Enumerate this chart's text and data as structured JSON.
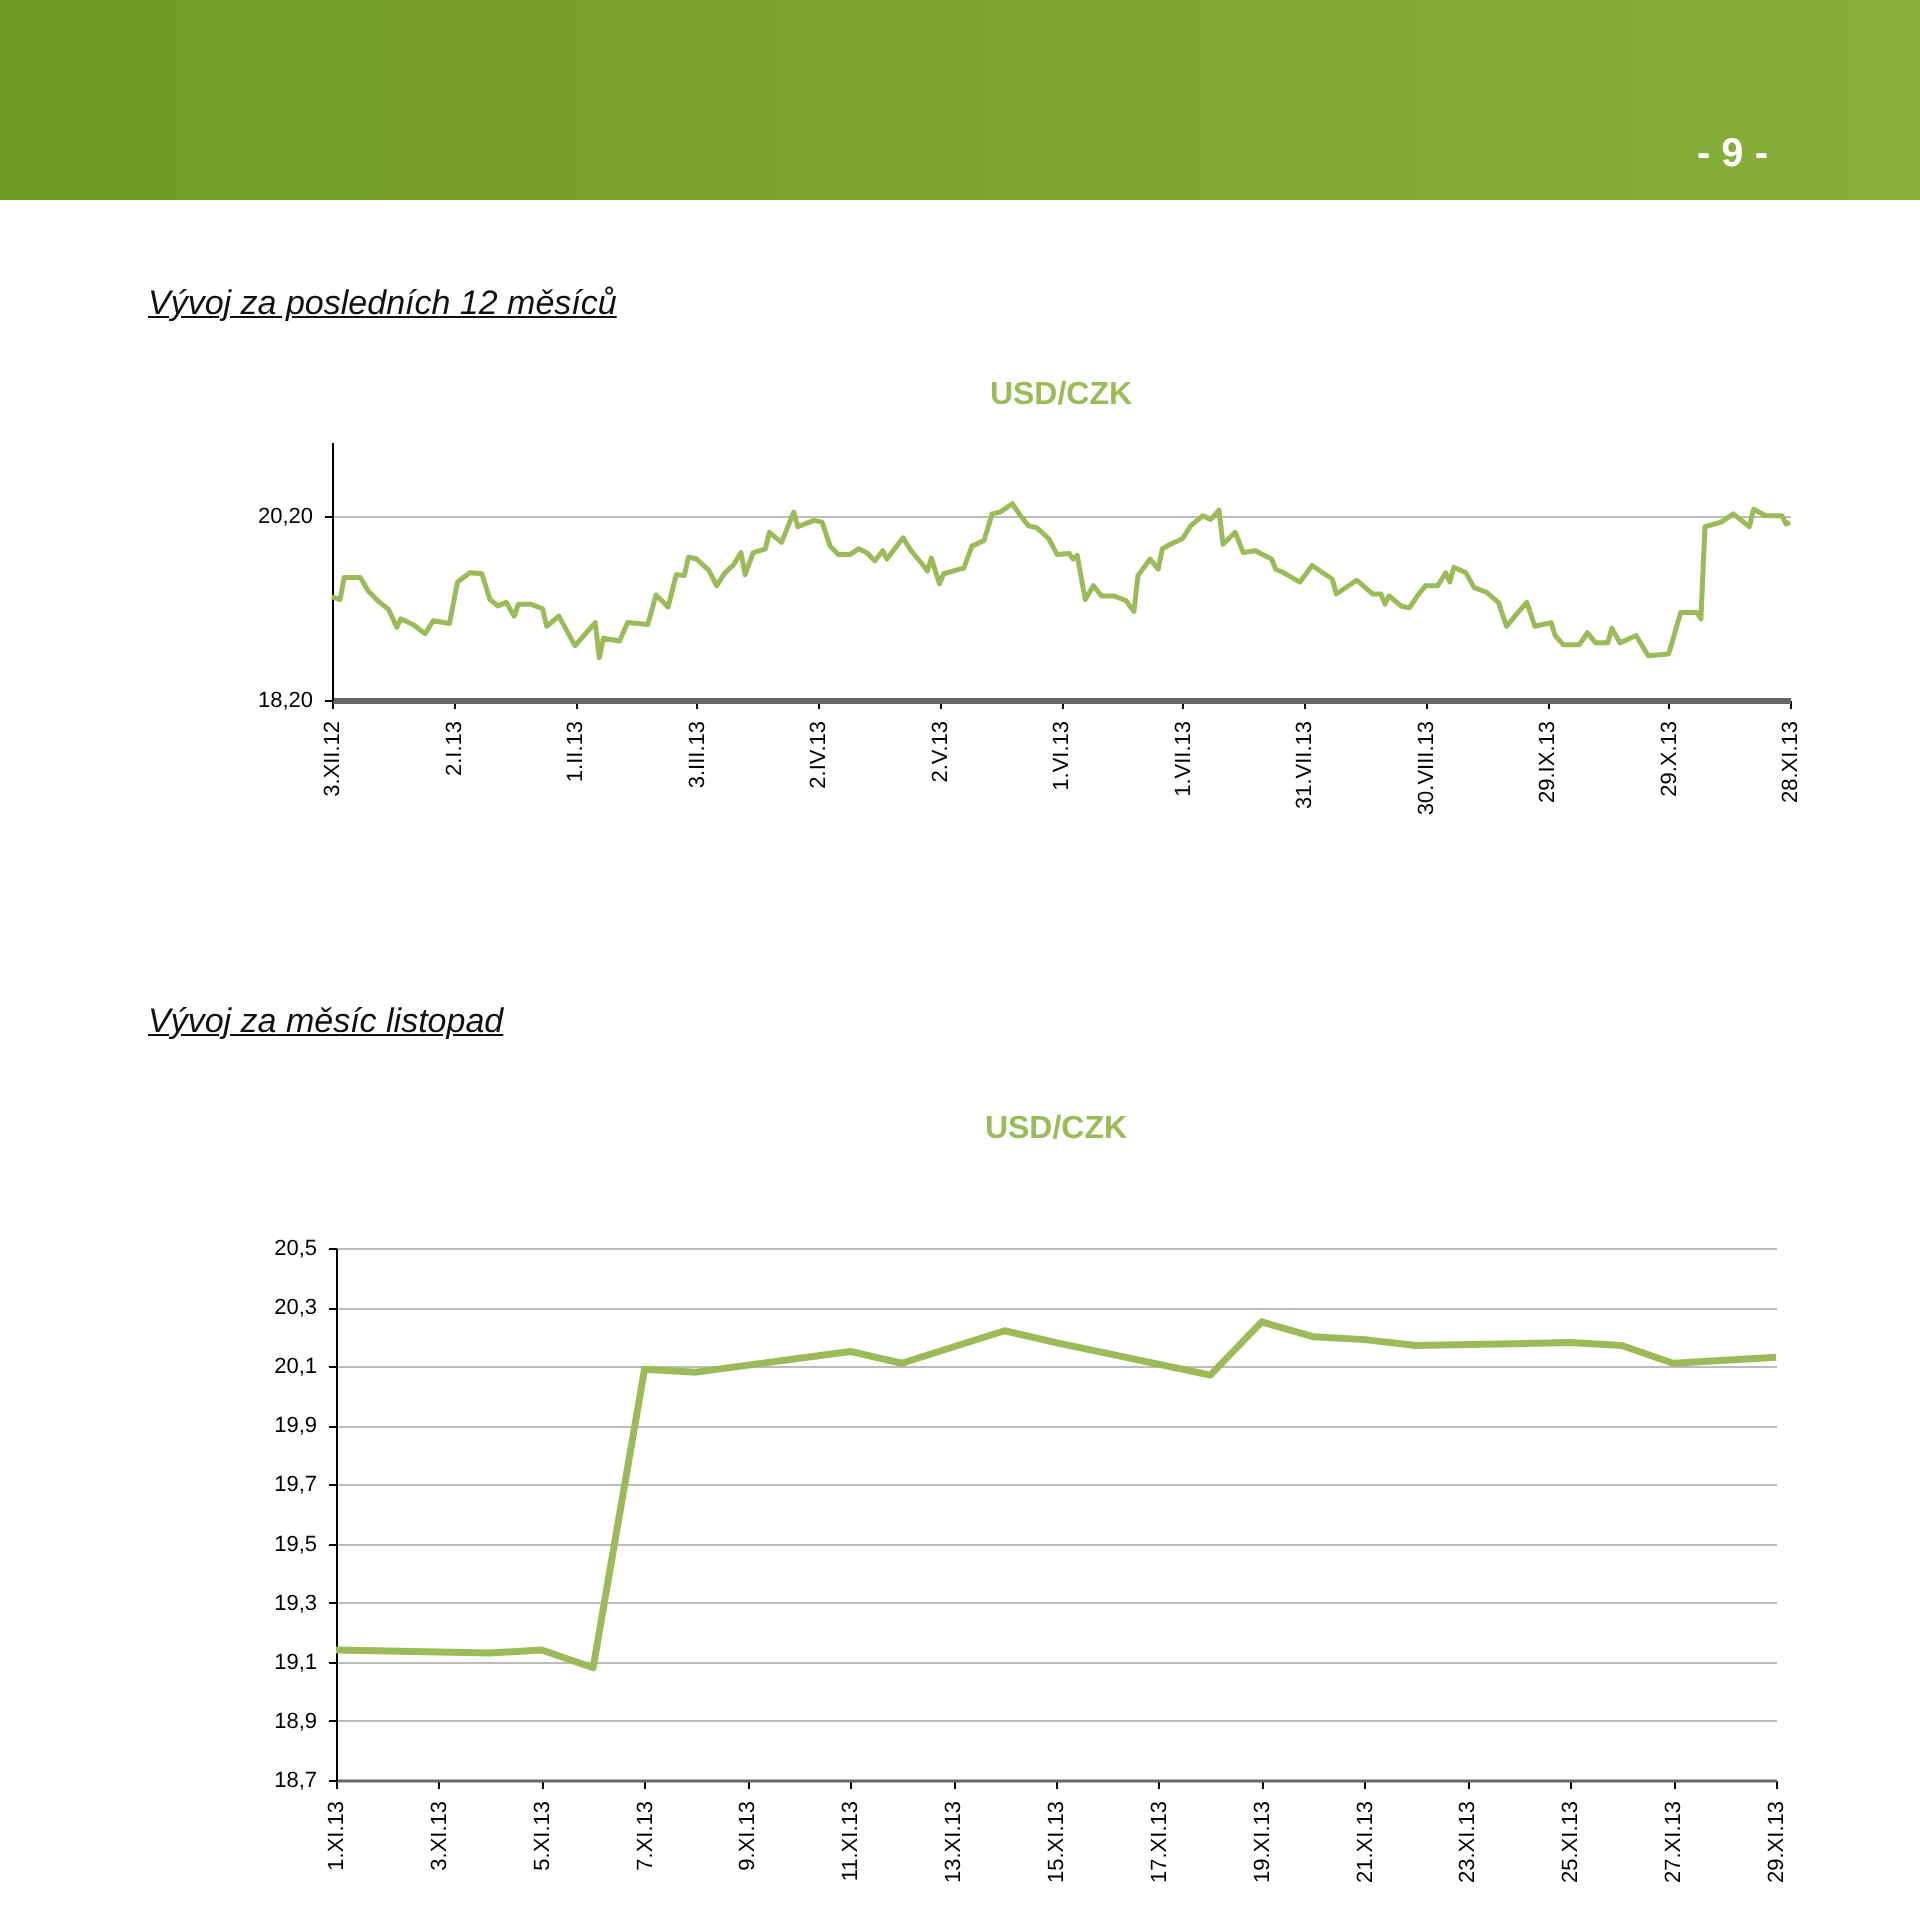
{
  "chart_data": [
    {
      "type": "line",
      "title": "Vývoj za posledních 12 měsíců",
      "subtitle": "USD/CZK",
      "annotations": [
        "- 9 -"
      ],
      "grid": "y",
      "xlim": [
        "2012-12-03",
        "2013-11-28"
      ],
      "ylim": [
        18.2,
        21.0
      ],
      "yticks": [
        {
          "value": 18.2,
          "label": "18,20"
        },
        {
          "value": 20.2,
          "label": "20,20"
        }
      ],
      "xticks": [
        {
          "value": "2012-12-03",
          "label": "3.XII.12"
        },
        {
          "value": "2013-01-02",
          "label": "2.I.13"
        },
        {
          "value": "2013-02-01",
          "label": "1.II.13"
        },
        {
          "value": "2013-03-03",
          "label": "3.III.13"
        },
        {
          "value": "2013-04-02",
          "label": "2.IV.13"
        },
        {
          "value": "2013-05-02",
          "label": "2.V.13"
        },
        {
          "value": "2013-06-01",
          "label": "1.VI.13"
        },
        {
          "value": "2013-07-01",
          "label": "1.VII.13"
        },
        {
          "value": "2013-07-31",
          "label": "31.VII.13"
        },
        {
          "value": "2013-08-30",
          "label": "30.VIII.13"
        },
        {
          "value": "2013-09-29",
          "label": "29.IX.13"
        },
        {
          "value": "2013-10-29",
          "label": "29.X.13"
        },
        {
          "value": "2013-11-28",
          "label": "28.XI.13"
        }
      ],
      "series": [
        {
          "color": "#9bbb59",
          "x": [
            "2012-12-03",
            "2012-12-05",
            "2012-12-06",
            "2012-12-10",
            "2012-12-12",
            "2012-12-14",
            "2012-12-17",
            "2012-12-19",
            "2012-12-20",
            "2012-12-23",
            "2012-12-26",
            "2012-12-28",
            "2013-01-01",
            "2013-01-03",
            "2013-01-06",
            "2013-01-09",
            "2013-01-11",
            "2013-01-13",
            "2013-01-15",
            "2013-01-17",
            "2013-01-18",
            "2013-01-21",
            "2013-01-24",
            "2013-01-25",
            "2013-01-28",
            "2013-02-01",
            "2013-02-06",
            "2013-02-07",
            "2013-02-08",
            "2013-02-12",
            "2013-02-14",
            "2013-02-19",
            "2013-02-21",
            "2013-02-24",
            "2013-02-26",
            "2013-02-28",
            "2013-03-01",
            "2013-03-03",
            "2013-03-06",
            "2013-03-08",
            "2013-03-10",
            "2013-03-12",
            "2013-03-14",
            "2013-03-15",
            "2013-03-17",
            "2013-03-20",
            "2013-03-21",
            "2013-03-24",
            "2013-03-27",
            "2013-03-28",
            "2013-04-01",
            "2013-04-03",
            "2013-04-05",
            "2013-04-07",
            "2013-04-10",
            "2013-04-12",
            "2013-04-14",
            "2013-04-16",
            "2013-04-18",
            "2013-04-19",
            "2013-04-23",
            "2013-04-25",
            "2013-04-28",
            "2013-04-29",
            "2013-04-30",
            "2013-05-02",
            "2013-05-03",
            "2013-05-07",
            "2013-05-08",
            "2013-05-10",
            "2013-05-13",
            "2013-05-15",
            "2013-05-17",
            "2013-05-20",
            "2013-05-22",
            "2013-05-24",
            "2013-05-26",
            "2013-05-29",
            "2013-05-31",
            "2013-06-03",
            "2013-06-04",
            "2013-06-05",
            "2013-06-07",
            "2013-06-09",
            "2013-06-11",
            "2013-06-14",
            "2013-06-17",
            "2013-06-19",
            "2013-06-20",
            "2013-06-23",
            "2013-06-25",
            "2013-06-26",
            "2013-06-28",
            "2013-07-01",
            "2013-07-03",
            "2013-07-06",
            "2013-07-08",
            "2013-07-10",
            "2013-07-11",
            "2013-07-14",
            "2013-07-16",
            "2013-07-19",
            "2013-07-23",
            "2013-07-24",
            "2013-07-26",
            "2013-07-30",
            "2013-08-02",
            "2013-08-07",
            "2013-08-08",
            "2013-08-13",
            "2013-08-17",
            "2013-08-19",
            "2013-08-20",
            "2013-08-21",
            "2013-08-24",
            "2013-08-26",
            "2013-08-28",
            "2013-08-30",
            "2013-09-02",
            "2013-09-04",
            "2013-09-05",
            "2013-09-06",
            "2013-09-09",
            "2013-09-11",
            "2013-09-14",
            "2013-09-17",
            "2013-09-19",
            "2013-09-22",
            "2013-09-24",
            "2013-09-26",
            "2013-09-30",
            "2013-10-01",
            "2013-10-03",
            "2013-10-07",
            "2013-10-09",
            "2013-10-11",
            "2013-10-14",
            "2013-10-15",
            "2013-10-17",
            "2013-10-21",
            "2013-10-24",
            "2013-10-29",
            "2013-10-30",
            "2013-11-01",
            "2013-11-05",
            "2013-11-06",
            "2013-11-07",
            "2013-11-11",
            "2013-11-12",
            "2013-11-14",
            "2013-11-18",
            "2013-11-19",
            "2013-11-22",
            "2013-11-26",
            "2013-11-27",
            "2013-11-28"
          ],
          "values": [
            19.32,
            19.29,
            19.53,
            19.53,
            19.38,
            19.29,
            19.18,
            18.99,
            19.08,
            19.02,
            18.92,
            19.06,
            19.03,
            19.48,
            19.58,
            19.57,
            19.29,
            19.22,
            19.26,
            19.11,
            19.24,
            19.24,
            19.19,
            19.0,
            19.11,
            18.79,
            19.04,
            18.66,
            18.87,
            18.84,
            19.04,
            19.02,
            19.34,
            19.21,
            19.56,
            19.55,
            19.75,
            19.73,
            19.61,
            19.44,
            19.58,
            19.66,
            19.8,
            19.56,
            19.8,
            19.84,
            20.02,
            19.91,
            20.24,
            20.08,
            20.15,
            20.13,
            19.87,
            19.78,
            19.78,
            19.84,
            19.8,
            19.71,
            19.82,
            19.73,
            19.96,
            19.82,
            19.66,
            19.6,
            19.74,
            19.46,
            19.57,
            19.62,
            19.63,
            19.87,
            19.93,
            20.22,
            20.24,
            20.33,
            20.2,
            20.09,
            20.07,
            19.95,
            19.78,
            19.79,
            19.73,
            19.77,
            19.29,
            19.44,
            19.33,
            19.33,
            19.28,
            19.16,
            19.55,
            19.73,
            19.62,
            19.84,
            19.89,
            19.95,
            20.09,
            20.2,
            20.16,
            20.26,
            19.89,
            20.02,
            19.8,
            19.82,
            19.73,
            19.62,
            19.58,
            19.48,
            19.66,
            19.51,
            19.35,
            19.5,
            19.35,
            19.35,
            19.24,
            19.33,
            19.22,
            19.2,
            19.33,
            19.44,
            19.44,
            19.58,
            19.48,
            19.64,
            19.58,
            19.42,
            19.37,
            19.26,
            19.0,
            19.16,
            19.26,
            19.0,
            19.04,
            18.9,
            18.8,
            18.8,
            18.93,
            18.82,
            18.82,
            18.98,
            18.82,
            18.9,
            18.68,
            18.7,
            18.84,
            19.15,
            19.15,
            19.08,
            20.08,
            20.13,
            20.16,
            20.22,
            20.08,
            20.27,
            20.2,
            20.2,
            20.11,
            20.13
          ]
        }
      ]
    },
    {
      "type": "line",
      "title": "Vývoj za měsíc listopad",
      "subtitle": "USD/CZK",
      "grid": "y",
      "xlim": [
        "--11-01",
        "--11-29"
      ],
      "ylim": [
        18.7,
        20.5
      ],
      "yticks": [
        {
          "value": 18.7,
          "label": "18,7"
        },
        {
          "value": 18.9,
          "label": "18,9"
        },
        {
          "value": 19.1,
          "label": "19,1"
        },
        {
          "value": 19.3,
          "label": "19,3"
        },
        {
          "value": 19.5,
          "label": "19,5"
        },
        {
          "value": 19.7,
          "label": "19,7"
        },
        {
          "value": 19.9,
          "label": "19,9"
        },
        {
          "value": 20.1,
          "label": "20,1"
        },
        {
          "value": 20.3,
          "label": "20,3"
        },
        {
          "value": 20.5,
          "label": "20,5"
        }
      ],
      "xticks": [
        {
          "value": "--11-01",
          "label": "1.XI.13"
        },
        {
          "value": "--11-03",
          "label": "3.XI.13"
        },
        {
          "value": "--11-05",
          "label": "5.XI.13"
        },
        {
          "value": "--11-07",
          "label": "7.XI.13"
        },
        {
          "value": "--11-09",
          "label": "9.XI.13"
        },
        {
          "value": "--11-11",
          "label": "11.XI.13"
        },
        {
          "value": "--11-13",
          "label": "13.XI.13"
        },
        {
          "value": "--11-15",
          "label": "15.XI.13"
        },
        {
          "value": "--11-17",
          "label": "17.XI.13"
        },
        {
          "value": "--11-19",
          "label": "19.XI.13"
        },
        {
          "value": "--11-21",
          "label": "21.XI.13"
        },
        {
          "value": "--11-23",
          "label": "23.XI.13"
        },
        {
          "value": "--11-25",
          "label": "25.XI.13"
        },
        {
          "value": "--11-27",
          "label": "27.XI.13"
        },
        {
          "value": "--11-29",
          "label": "29.XI.13"
        }
      ],
      "series": [
        {
          "color": "#9bbb59",
          "x": [
            "--11-01",
            "--11-04",
            "--11-05",
            "--11-06",
            "--11-07",
            "--11-08",
            "--11-11",
            "--11-12",
            "--11-14",
            "--11-15",
            "--11-18",
            "--11-19",
            "--11-20",
            "--11-21",
            "--11-22",
            "--11-25",
            "--11-26",
            "--11-27",
            "--11-28",
            "--11-29"
          ],
          "values": [
            19.14,
            19.13,
            19.14,
            19.08,
            20.09,
            20.08,
            20.15,
            20.11,
            20.22,
            20.18,
            20.07,
            20.25,
            20.2,
            20.19,
            20.17,
            20.18,
            20.17,
            20.11,
            20.12,
            20.13
          ]
        }
      ]
    }
  ]
}
